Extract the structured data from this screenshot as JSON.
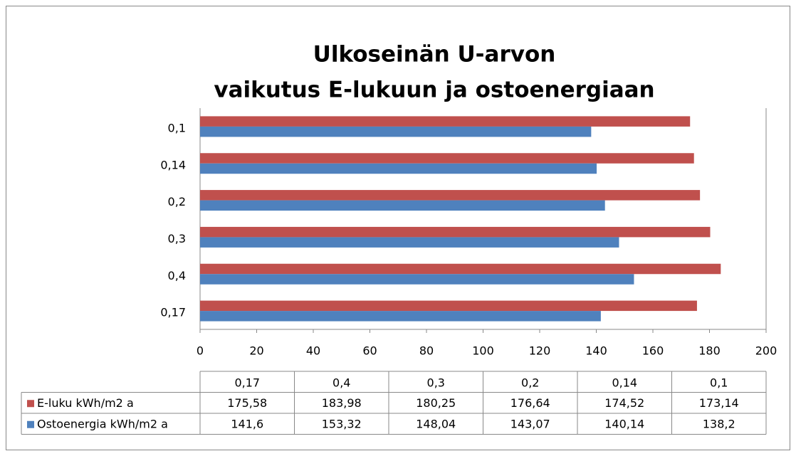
{
  "chart_data": {
    "type": "bar",
    "orientation": "horizontal",
    "title": [
      "Ulkoseinän U-arvon",
      "vaikutus E-lukuun ja ostoenergiaan"
    ],
    "categories": [
      "0,17",
      "0,4",
      "0,3",
      "0,2",
      "0,14",
      "0,1"
    ],
    "series": [
      {
        "name": "E-luku kWh/m2 a",
        "color": "#c0504d",
        "values": [
          175.58,
          183.98,
          180.25,
          176.64,
          174.52,
          173.14
        ],
        "value_labels": [
          "175,58",
          "183,98",
          "180,25",
          "176,64",
          "174,52",
          "173,14"
        ]
      },
      {
        "name": "Ostoenergia kWh/m2 a",
        "color": "#4f81bd",
        "values": [
          141.6,
          153.32,
          148.04,
          143.07,
          140.14,
          138.2
        ],
        "value_labels": [
          "141,6",
          "153,32",
          "148,04",
          "143,07",
          "140,14",
          "138,2"
        ]
      }
    ],
    "xlim": [
      0,
      200
    ],
    "xticks": [
      0,
      20,
      40,
      60,
      80,
      100,
      120,
      140,
      160,
      180,
      200
    ],
    "grid": false,
    "data_table": true
  }
}
